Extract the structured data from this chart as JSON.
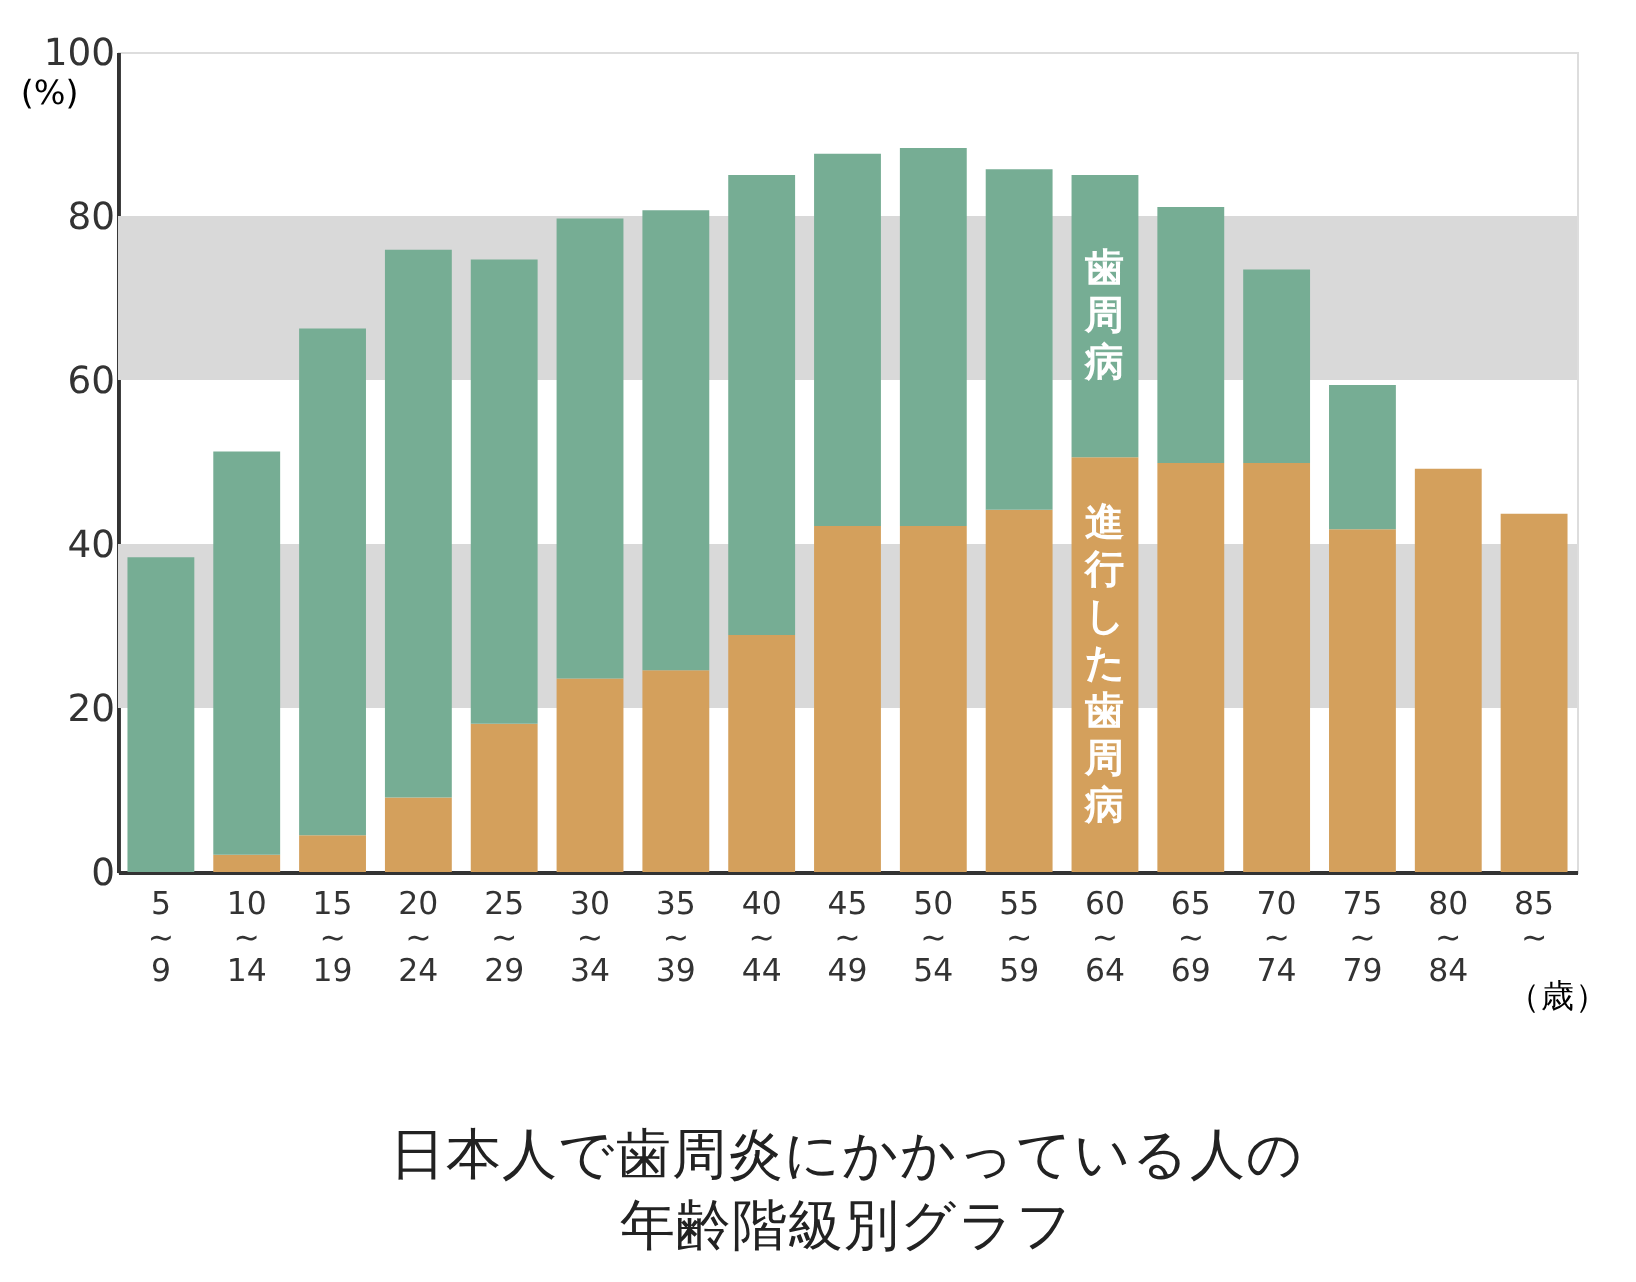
{
  "chart_data": {
    "type": "bar",
    "stacked": true,
    "title": [
      "日本人で歯周炎にかかっている人の",
      "年齢階級別グラフ"
    ],
    "ylabel": "(%)",
    "xlabel": "（歳）",
    "categories": [
      "5\n~\n9",
      "10\n~\n14",
      "15\n~\n19",
      "20\n~\n24",
      "25\n~\n29",
      "30\n~\n34",
      "35\n~\n39",
      "40\n~\n44",
      "45\n~\n49",
      "50\n~\n54",
      "55\n~\n59",
      "60\n~\n64",
      "65\n~\n69",
      "70\n~\n74",
      "75\n~\n79",
      "80\n~\n84",
      "85\n~"
    ],
    "series": [
      {
        "name": "進行した歯周病",
        "color": "#d4a05c",
        "values": [
          0,
          2.1,
          4.5,
          9.1,
          18.1,
          23.6,
          24.6,
          28.9,
          42.2,
          42.2,
          44.2,
          50.6,
          49.9,
          49.9,
          41.8,
          49.2,
          43.7
        ]
      },
      {
        "name": "歯周病",
        "color": "#76ad94",
        "values": [
          38.4,
          49.2,
          61.8,
          66.8,
          56.6,
          56.1,
          56.1,
          56.1,
          45.4,
          46.1,
          41.5,
          34.4,
          31.2,
          23.6,
          17.6,
          0,
          0
        ]
      }
    ],
    "ylim": [
      0,
      100
    ],
    "yticks": [
      0,
      20,
      40,
      60,
      80,
      100
    ],
    "bands": [
      {
        "axis": "y",
        "from": 20,
        "to": 40,
        "color": "#d9d9d9"
      },
      {
        "axis": "y",
        "from": 60,
        "to": 80,
        "color": "#d9d9d9"
      }
    ],
    "grid": false,
    "legend": false
  }
}
